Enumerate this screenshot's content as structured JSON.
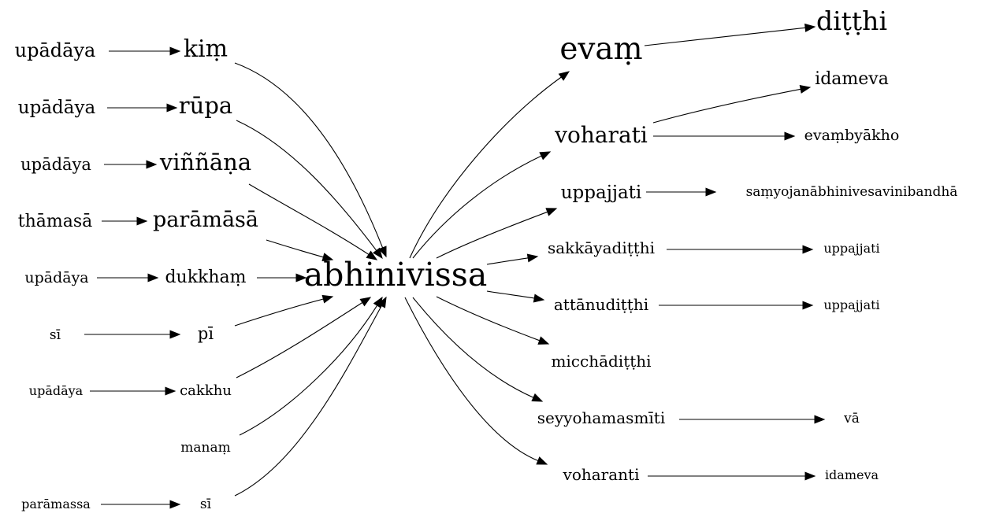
{
  "nodes": {
    "n01": "upādāya",
    "n02": "kiṃ",
    "n03": "upādāya",
    "n04": "rūpa",
    "n05": "upādāya",
    "n06": "viññāṇa",
    "n07": "thāmasā",
    "n08": "parāmāsā",
    "n09": "upādāya",
    "n10": "dukkhaṃ",
    "n11": "sī",
    "n12": "pī",
    "n13": "upādāya",
    "n14": "cakkhu",
    "n15": "manaṃ",
    "n16": "parāmassa",
    "n17": "sī",
    "center": "abhinivissa",
    "m01": "evaṃ",
    "m02": "diṭṭhi",
    "m03": "idameva",
    "m04": "voharati",
    "m05": "evaṃbyākho",
    "m06": "uppajjati",
    "m07": "saṃyojanābhinivesavinibandhā",
    "m08": "sakkāyadiṭṭhi",
    "m09": "uppajjati",
    "m10": "attānudiṭṭhi",
    "m11": "uppajjati",
    "m12": "micchādiṭṭhi",
    "m13": "seyyohamasmīti",
    "m14": "vā",
    "m15": "voharanti",
    "m16": "idameva"
  },
  "edges": [
    [
      "n01",
      "n02"
    ],
    [
      "n03",
      "n04"
    ],
    [
      "n05",
      "n06"
    ],
    [
      "n07",
      "n08"
    ],
    [
      "n09",
      "n10"
    ],
    [
      "n11",
      "n12"
    ],
    [
      "n13",
      "n14"
    ],
    [
      "n16",
      "n17"
    ],
    [
      "n02",
      "center"
    ],
    [
      "n04",
      "center"
    ],
    [
      "n06",
      "center"
    ],
    [
      "n08",
      "center"
    ],
    [
      "n10",
      "center"
    ],
    [
      "n12",
      "center"
    ],
    [
      "n14",
      "center"
    ],
    [
      "n15",
      "center"
    ],
    [
      "n17",
      "center"
    ],
    [
      "center",
      "m01"
    ],
    [
      "center",
      "m04"
    ],
    [
      "center",
      "m06"
    ],
    [
      "center",
      "m08"
    ],
    [
      "center",
      "m10"
    ],
    [
      "center",
      "m12"
    ],
    [
      "center",
      "m13"
    ],
    [
      "center",
      "m15"
    ],
    [
      "m01",
      "m02"
    ],
    [
      "m04",
      "m03"
    ],
    [
      "m04",
      "m05"
    ],
    [
      "m06",
      "m07"
    ],
    [
      "m08",
      "m09"
    ],
    [
      "m10",
      "m11"
    ],
    [
      "m13",
      "m14"
    ],
    [
      "m15",
      "m16"
    ]
  ]
}
